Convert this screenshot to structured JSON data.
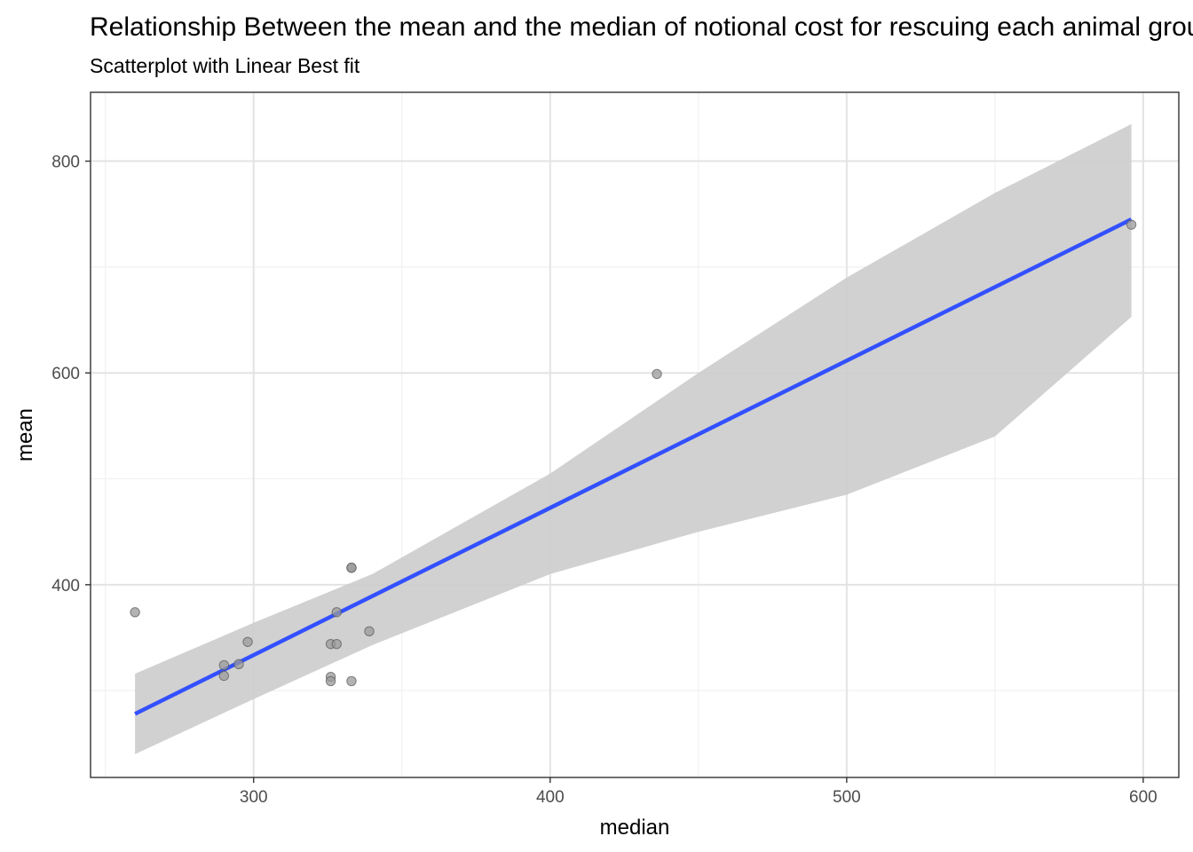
{
  "chart_data": {
    "type": "scatter",
    "title": "Relationship Between the mean and the median of notional cost for rescuing each animal group",
    "subtitle": "Scatterplot with Linear Best fit",
    "xlabel": "median",
    "ylabel": "mean",
    "xlim": [
      245,
      612
    ],
    "ylim": [
      218,
      865
    ],
    "x_ticks": [
      300,
      400,
      500,
      600
    ],
    "y_ticks": [
      400,
      600,
      800
    ],
    "x_minor_ticks": [
      250,
      350,
      450,
      550
    ],
    "y_minor_ticks": [
      300,
      500,
      700
    ],
    "grid": true,
    "legend": "none",
    "points": [
      {
        "x": 260,
        "y": 374
      },
      {
        "x": 290,
        "y": 324
      },
      {
        "x": 290,
        "y": 314
      },
      {
        "x": 295,
        "y": 325
      },
      {
        "x": 298,
        "y": 346
      },
      {
        "x": 326,
        "y": 344
      },
      {
        "x": 326,
        "y": 313
      },
      {
        "x": 326,
        "y": 309
      },
      {
        "x": 328,
        "y": 374
      },
      {
        "x": 328,
        "y": 344
      },
      {
        "x": 333,
        "y": 416
      },
      {
        "x": 333,
        "y": 416
      },
      {
        "x": 333,
        "y": 309
      },
      {
        "x": 339,
        "y": 356
      },
      {
        "x": 436,
        "y": 599
      },
      {
        "x": 596,
        "y": 740
      }
    ],
    "fit_line": {
      "method": "linear",
      "x": [
        260,
        596
      ],
      "y": [
        278,
        745
      ]
    },
    "confidence_band": {
      "x": [
        260,
        300,
        340,
        400,
        450,
        500,
        550,
        596
      ],
      "lower": [
        240,
        292,
        343,
        410,
        450,
        485,
        540,
        653
      ],
      "upper": [
        316,
        364,
        410,
        505,
        600,
        690,
        770,
        835
      ]
    },
    "colors": {
      "point_fill": "#9a9a9a",
      "point_stroke": "#555555",
      "fit_line": "#3350ff",
      "band": "#cccccc",
      "grid_major": "#e3e3e3",
      "grid_minor": "#f1f1f1",
      "axis_text": "#4d4d4d",
      "panel_border": "#333333"
    }
  }
}
